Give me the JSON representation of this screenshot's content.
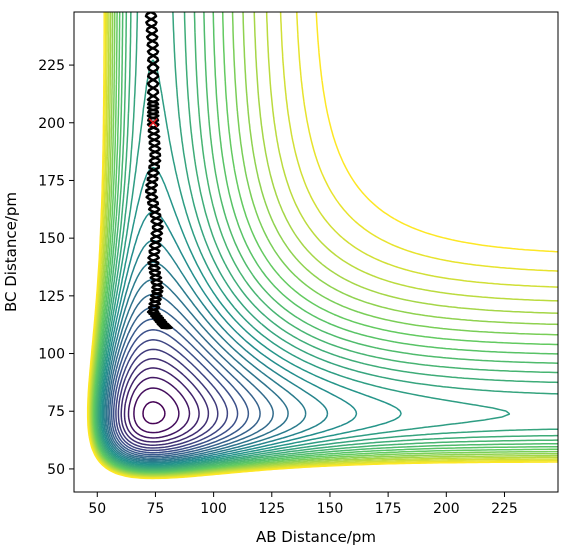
{
  "chart_data": {
    "type": "contour",
    "title": "",
    "xlabel": "AB Distance/pm",
    "ylabel": "BC Distance/pm",
    "xlim": [
      40,
      248
    ],
    "ylim": [
      40,
      248
    ],
    "xticks": [
      50,
      75,
      100,
      125,
      150,
      175,
      200,
      225
    ],
    "yticks": [
      50,
      75,
      100,
      125,
      150,
      175,
      200,
      225
    ],
    "colormap": "viridis",
    "colormap_stops": [
      "#440154",
      "#3b528b",
      "#21918c",
      "#5ec962",
      "#fde725"
    ],
    "contour_levels": 30,
    "saddle_point": [
      114,
      78
    ],
    "trajectory": {
      "color": "#000000",
      "points": [
        [
          73,
          248
        ],
        [
          74,
          230
        ],
        [
          74,
          210
        ],
        [
          74,
          200
        ],
        [
          75,
          185
        ],
        [
          73,
          170
        ],
        [
          76,
          155
        ],
        [
          74,
          140
        ],
        [
          76,
          128
        ],
        [
          74,
          118
        ],
        [
          78,
          113
        ],
        [
          80,
          111
        ]
      ]
    },
    "start_marker": {
      "x": 74,
      "y": 200,
      "symbol": "x",
      "color": "#e8191c"
    }
  }
}
